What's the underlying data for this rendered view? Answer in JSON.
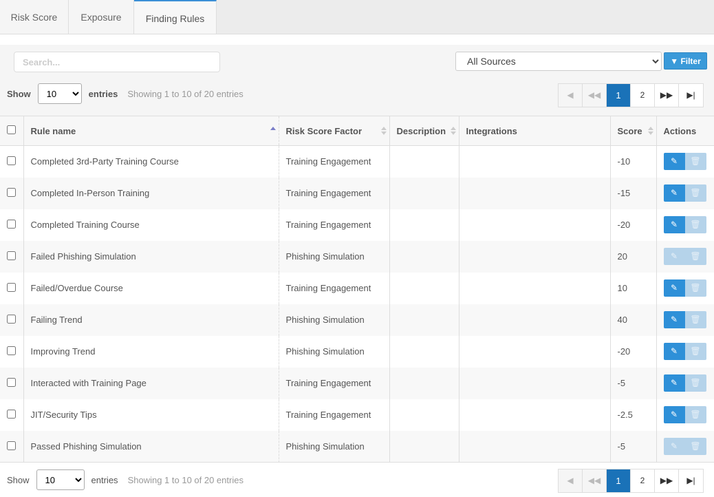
{
  "tabs": [
    {
      "label": "Risk Score"
    },
    {
      "label": "Exposure"
    },
    {
      "label": "Finding Rules",
      "active": true
    }
  ],
  "search": {
    "placeholder": "Search..."
  },
  "source_filter": {
    "selected": "All Sources"
  },
  "filter_button": {
    "label": "Filter",
    "icon": "filter-icon"
  },
  "length": {
    "show": "Show",
    "value": "10",
    "entries": "entries"
  },
  "info": "Showing 1 to 10 of 20 entries",
  "pagination": {
    "pages": [
      "1",
      "2"
    ],
    "current": "1",
    "first": "first-icon",
    "prev": "prev-icon",
    "next": "next-icon",
    "last": "last-icon"
  },
  "table": {
    "headers": {
      "rule_name": "Rule name",
      "factor": "Risk Score Factor",
      "description": "Description",
      "integrations": "Integrations",
      "score": "Score",
      "actions": "Actions"
    },
    "rows": [
      {
        "name": "Completed 3rd-Party Training Course",
        "factor": "Training Engagement",
        "description": "",
        "integrations": "",
        "score": "-10",
        "editable": true
      },
      {
        "name": "Completed In-Person Training",
        "factor": "Training Engagement",
        "description": "",
        "integrations": "",
        "score": "-15",
        "editable": true
      },
      {
        "name": "Completed Training Course",
        "factor": "Training Engagement",
        "description": "",
        "integrations": "",
        "score": "-20",
        "editable": true
      },
      {
        "name": "Failed Phishing Simulation",
        "factor": "Phishing Simulation",
        "description": "",
        "integrations": "",
        "score": "20",
        "editable": false
      },
      {
        "name": "Failed/Overdue Course",
        "factor": "Training Engagement",
        "description": "",
        "integrations": "",
        "score": "10",
        "editable": true
      },
      {
        "name": "Failing Trend",
        "factor": "Phishing Simulation",
        "description": "",
        "integrations": "",
        "score": "40",
        "editable": true
      },
      {
        "name": "Improving Trend",
        "factor": "Phishing Simulation",
        "description": "",
        "integrations": "",
        "score": "-20",
        "editable": true
      },
      {
        "name": "Interacted with Training Page",
        "factor": "Training Engagement",
        "description": "",
        "integrations": "",
        "score": "-5",
        "editable": true
      },
      {
        "name": "JIT/Security Tips",
        "factor": "Training Engagement",
        "description": "",
        "integrations": "",
        "score": "-2.5",
        "editable": true
      },
      {
        "name": "Passed Phishing Simulation",
        "factor": "Phishing Simulation",
        "description": "",
        "integrations": "",
        "score": "-5",
        "editable": false
      }
    ]
  },
  "colors": {
    "accent": "#2e90d8",
    "current_page": "#1a72b8",
    "disabled_button": "#b5d3ea"
  }
}
